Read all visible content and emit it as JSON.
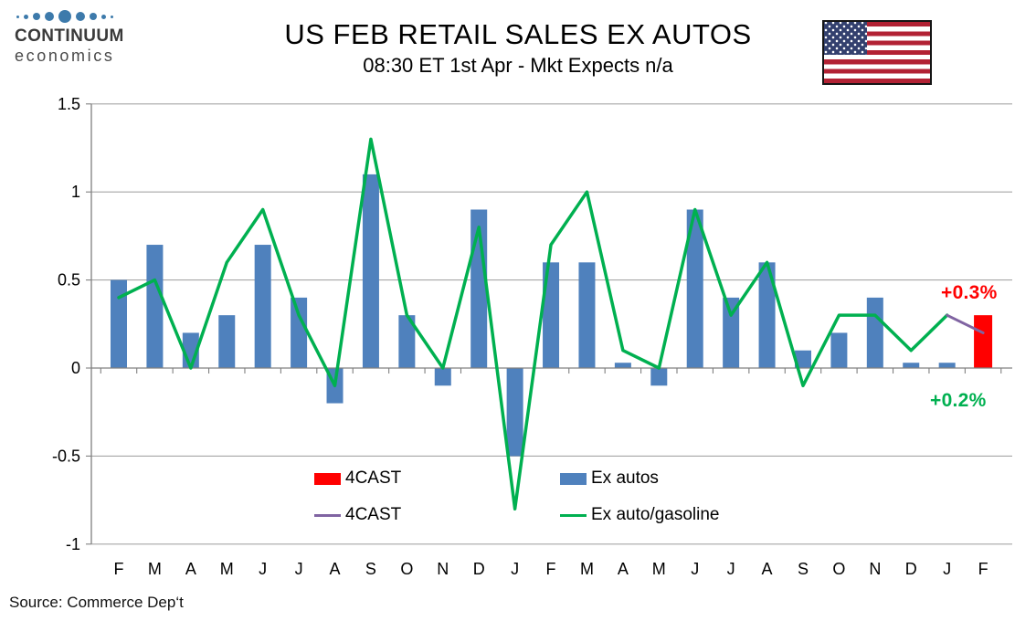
{
  "header": {
    "logo_line1": "CONTINUUM",
    "logo_line2": "economics",
    "title": "US FEB RETAIL SALES EX AUTOS",
    "subtitle": "08:30 ET 1st Apr - Mkt Expects n/a"
  },
  "legend": {
    "forecast_bar": "4CAST",
    "forecast_line": "4CAST",
    "ex_autos": "Ex autos",
    "ex_auto_gasoline": "Ex auto/gasoline"
  },
  "annotations": {
    "ex_autos_forecast": "+0.3%",
    "ex_auto_gasoline_forecast": "+0.2%"
  },
  "source": "Source: Commerce Dep‘t",
  "colors": {
    "bar_blue": "#4F81BD",
    "line_green": "#00B050",
    "forecast_red": "#FF0000",
    "forecast_purple": "#8064A2",
    "gridline": "#A6A6A6",
    "axis": "#808080",
    "logo_blue": "#3d7aab"
  },
  "chart_data": {
    "type": "bar",
    "title": "US FEB RETAIL SALES EX AUTOS",
    "xlabel": "",
    "ylabel": "",
    "ylim": [
      -1,
      1.5
    ],
    "yticks": [
      1.5,
      1,
      0.5,
      0,
      -0.5,
      -1
    ],
    "ytick_labels": [
      "1.5",
      "1",
      "0.5",
      "0",
      "-0.5",
      "-1"
    ],
    "grid": true,
    "legend_position": "inside-bottom",
    "categories": [
      "F",
      "M",
      "A",
      "M",
      "J",
      "J",
      "A",
      "S",
      "O",
      "N",
      "D",
      "J",
      "F",
      "M",
      "A",
      "M",
      "J",
      "J",
      "A",
      "S",
      "O",
      "N",
      "D",
      "J",
      "F"
    ],
    "series": [
      {
        "name": "Ex autos",
        "kind": "bar",
        "color": "#4F81BD",
        "values": [
          0.5,
          0.7,
          0.2,
          0.3,
          0.7,
          0.4,
          -0.2,
          1.1,
          0.3,
          -0.1,
          0.9,
          -0.5,
          0.6,
          0.6,
          0.03,
          -0.1,
          0.9,
          0.4,
          0.6,
          0.1,
          0.2,
          0.4,
          0.03,
          0.03,
          null
        ]
      },
      {
        "name": "4CAST",
        "kind": "bar",
        "color": "#FF0000",
        "values": [
          null,
          null,
          null,
          null,
          null,
          null,
          null,
          null,
          null,
          null,
          null,
          null,
          null,
          null,
          null,
          null,
          null,
          null,
          null,
          null,
          null,
          null,
          null,
          null,
          0.3
        ]
      },
      {
        "name": "Ex auto/gasoline",
        "kind": "line",
        "color": "#00B050",
        "values": [
          0.4,
          0.5,
          0.0,
          0.6,
          0.9,
          0.3,
          -0.1,
          1.3,
          0.3,
          0.0,
          0.8,
          -0.8,
          0.7,
          1.0,
          0.1,
          0.0,
          0.9,
          0.3,
          0.6,
          -0.1,
          0.3,
          0.3,
          0.1,
          0.3,
          null
        ]
      },
      {
        "name": "4CAST",
        "kind": "line",
        "color": "#8064A2",
        "values": [
          null,
          null,
          null,
          null,
          null,
          null,
          null,
          null,
          null,
          null,
          null,
          null,
          null,
          null,
          null,
          null,
          null,
          null,
          null,
          null,
          null,
          null,
          null,
          0.3,
          0.2
        ]
      }
    ]
  }
}
